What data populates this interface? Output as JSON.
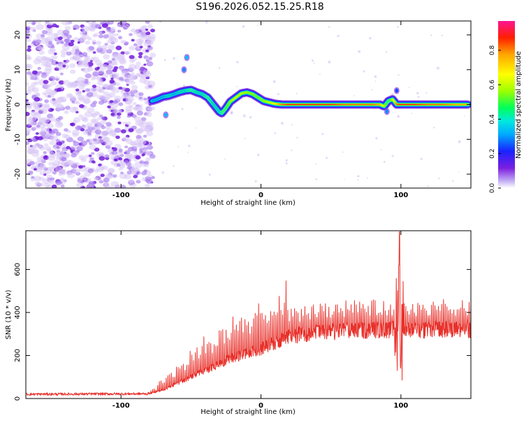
{
  "title": "S196.2026.052.15.25.R18",
  "chart_data": [
    {
      "type": "heatmap",
      "name": "spectrogram",
      "xlabel": "Height of straight line (km)",
      "ylabel": "Frequency (Hz)",
      "xlim": [
        -168,
        150
      ],
      "ylim": [
        -24,
        24
      ],
      "xticks": [
        -100,
        0,
        100
      ],
      "yticks": [
        -20,
        -10,
        0,
        10,
        20
      ],
      "xtick_labels": [
        "-100",
        "0",
        "100"
      ],
      "ytick_labels": [
        "-20",
        "-10",
        "0",
        "10",
        "20"
      ],
      "noise_region_x": [
        -168,
        -77
      ],
      "ridge": {
        "x": [
          -78,
          -74,
          -70,
          -66,
          -62,
          -58,
          -54,
          -50,
          -46,
          -42,
          -38,
          -34,
          -30,
          -28,
          -25,
          -22,
          -18,
          -14,
          -10,
          -6,
          -2,
          2,
          6,
          10,
          15,
          20,
          30,
          40,
          50,
          60,
          70,
          80,
          85,
          88,
          91,
          94,
          97,
          100,
          110,
          120,
          130,
          140,
          148
        ],
        "freq": [
          1,
          1.5,
          2.2,
          2.5,
          3,
          3.6,
          4,
          4.2,
          3.5,
          3,
          2,
          0,
          -2,
          -2.5,
          -1,
          0.8,
          2,
          3.2,
          3.5,
          3,
          2,
          1,
          0.6,
          0.2,
          0,
          0,
          0,
          0,
          0,
          0,
          0,
          0,
          0,
          -0.5,
          1,
          1.5,
          0,
          0,
          0,
          0,
          0,
          0,
          0
        ],
        "amp": [
          0.3,
          0.3,
          0.3,
          0.35,
          0.3,
          0.35,
          0.35,
          0.4,
          0.35,
          0.35,
          0.4,
          0.35,
          0.35,
          0.4,
          0.45,
          0.55,
          0.65,
          0.6,
          0.55,
          0.55,
          0.5,
          0.55,
          0.6,
          0.7,
          0.85,
          0.9,
          0.9,
          0.9,
          0.9,
          0.85,
          0.85,
          0.85,
          0.8,
          0.6,
          0.4,
          0.6,
          0.85,
          0.9,
          0.9,
          0.85,
          0.85,
          0.8,
          0.8
        ]
      },
      "ridge_glitches": [
        {
          "x": -53,
          "freq": 13.5,
          "amp": 0.35
        },
        {
          "x": -55,
          "freq": 10,
          "amp": 0.3
        },
        {
          "x": -68,
          "freq": -3,
          "amp": 0.35
        },
        {
          "x": 90,
          "freq": -2,
          "amp": 0.3
        },
        {
          "x": 97,
          "freq": 4,
          "amp": 0.25
        }
      ],
      "colorbar": {
        "label": "Normalized spectral amplitude",
        "range": [
          0.0,
          0.97
        ],
        "ticks": [
          0.0,
          0.2,
          0.4,
          0.6,
          0.8
        ],
        "tick_labels": [
          "0.0",
          "0.2",
          "0.4",
          "0.6",
          "0.8"
        ]
      }
    },
    {
      "type": "line",
      "name": "snr",
      "xlabel": "Height of straight line (km)",
      "ylabel": "SNR (10 * v/v)",
      "xlim": [
        -168,
        150
      ],
      "ylim": [
        0,
        780
      ],
      "xticks": [
        -100,
        0,
        100
      ],
      "yticks": [
        0,
        200,
        400,
        600
      ],
      "xtick_labels": [
        "-100",
        "0",
        "100"
      ],
      "ytick_labels": [
        "0",
        "200",
        "400",
        "600"
      ],
      "series_color": "#e8312b",
      "baseline": {
        "x": [
          -168,
          -80,
          -70,
          -60,
          -50,
          -40,
          -30,
          -20,
          -10,
          0,
          10,
          20,
          30,
          40,
          50,
          60,
          70,
          80,
          90,
          100,
          110,
          120,
          130,
          140,
          150
        ],
        "y": [
          20,
          22,
          40,
          70,
          100,
          130,
          160,
          190,
          210,
          230,
          260,
          285,
          300,
          305,
          310,
          315,
          315,
          320,
          320,
          320,
          315,
          320,
          320,
          320,
          320
        ]
      },
      "spikes": [
        {
          "x": 99,
          "y": 775
        },
        {
          "x": 98.5,
          "y": 620
        },
        {
          "x": 100,
          "y": 140
        },
        {
          "x": 101,
          "y": 85
        },
        {
          "x": 97.5,
          "y": 130
        }
      ]
    }
  ]
}
